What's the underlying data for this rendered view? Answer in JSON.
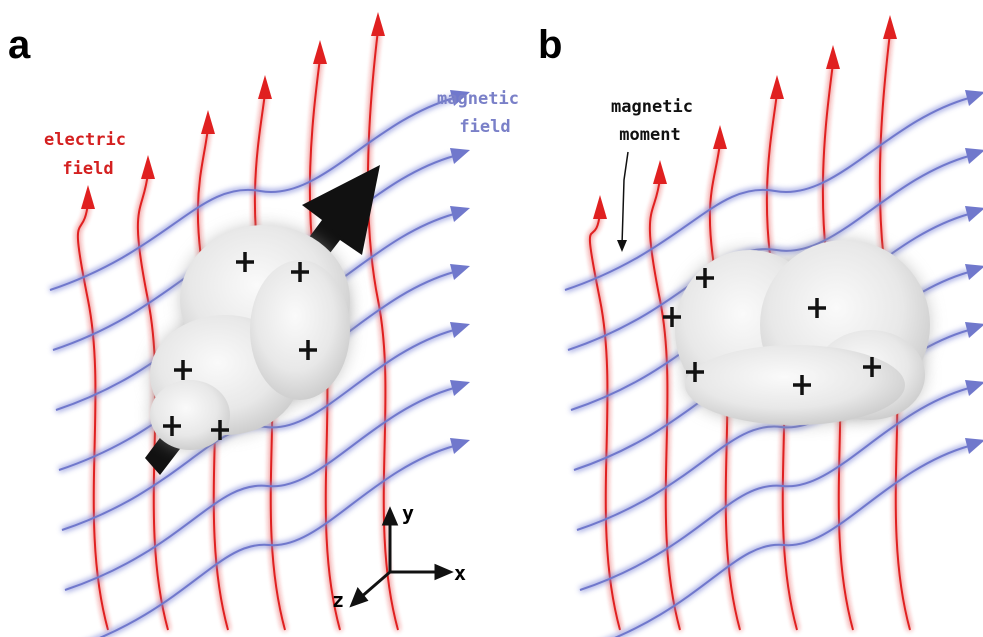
{
  "panels": [
    {
      "label": "a",
      "annotations": [
        {
          "lines": [
            "electric",
            "field"
          ]
        },
        {
          "lines": [
            "magnetic",
            "field"
          ]
        }
      ]
    },
    {
      "label": "b",
      "annotations": [
        {
          "lines": [
            "magnetic",
            "moment"
          ]
        }
      ]
    }
  ],
  "axes": {
    "x": "x",
    "y": "y",
    "z": "z"
  }
}
